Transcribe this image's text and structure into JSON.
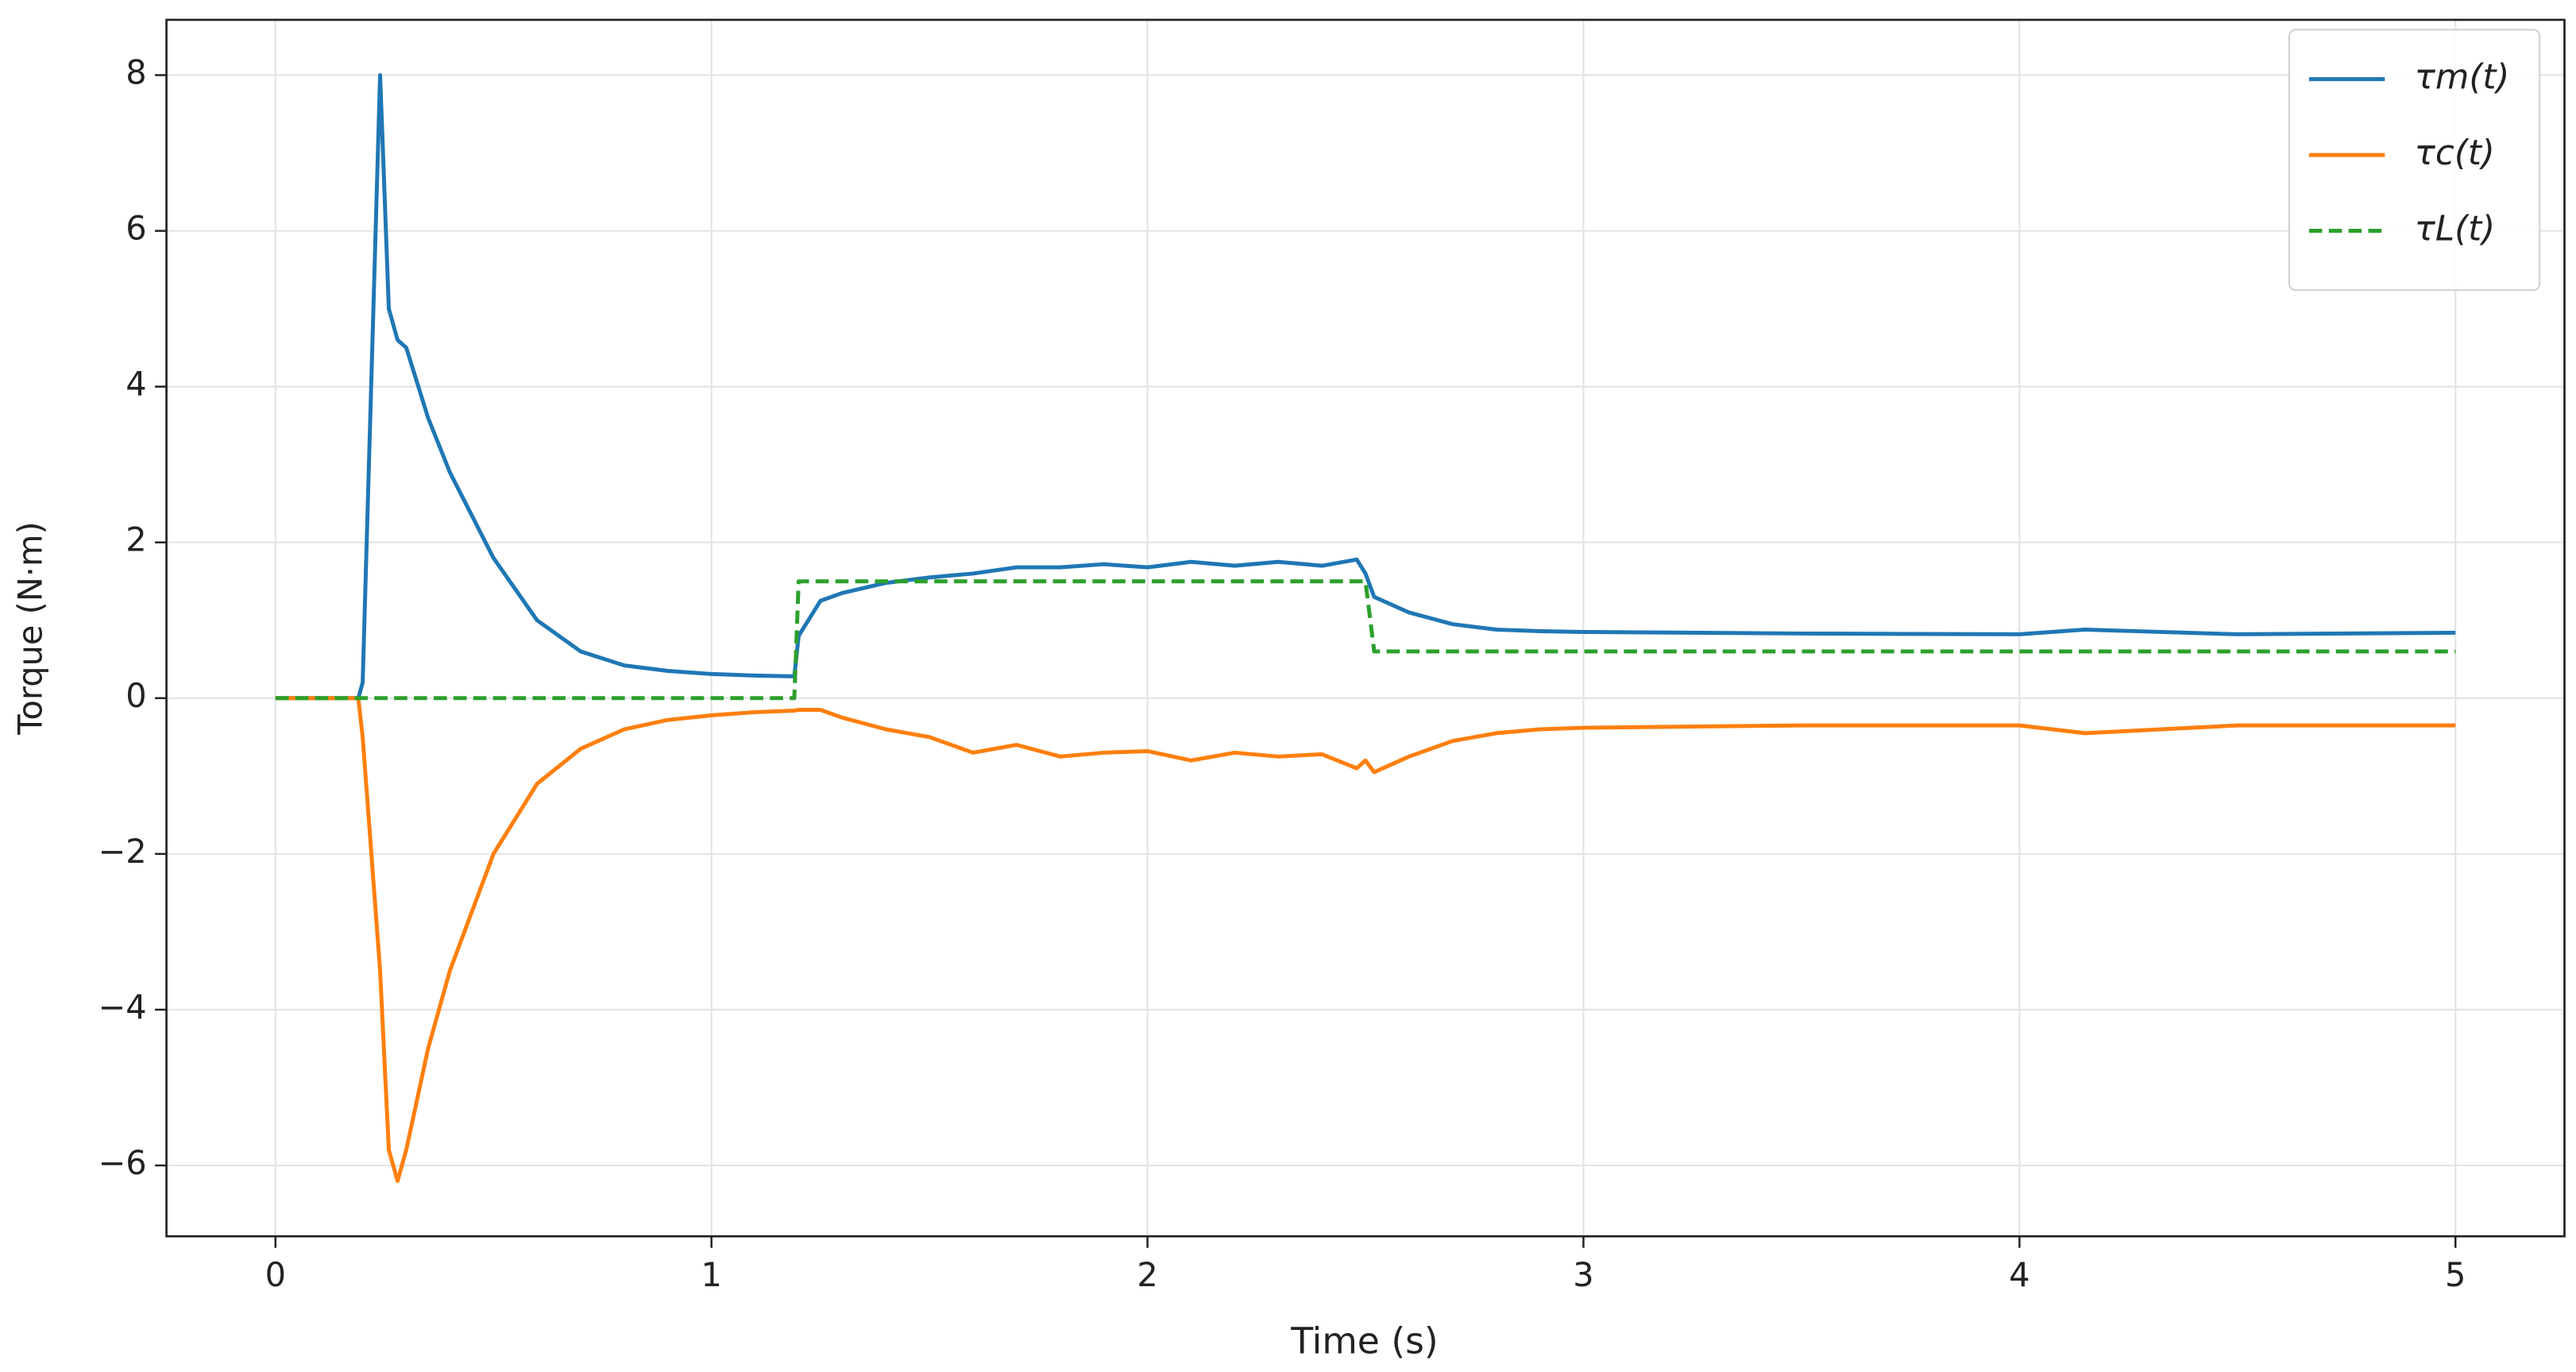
{
  "chart_data": {
    "type": "line",
    "x_label": "Time (s)",
    "y_label": "Torque (N·m)",
    "x": [
      0,
      0.1,
      0.19,
      0.2,
      0.24,
      0.26,
      0.28,
      0.3,
      0.35,
      0.4,
      0.5,
      0.6,
      0.7,
      0.8,
      0.9,
      1.0,
      1.1,
      1.19,
      1.2,
      1.25,
      1.3,
      1.4,
      1.5,
      1.6,
      1.7,
      1.8,
      1.9,
      2.0,
      2.1,
      2.2,
      2.3,
      2.4,
      2.48,
      2.5,
      2.52,
      2.6,
      2.7,
      2.8,
      2.9,
      3.0,
      3.5,
      4.0,
      4.15,
      4.5,
      5.0
    ],
    "series": [
      {
        "name": "τm(t)",
        "color": "#1f77b4",
        "dashed": false,
        "values": [
          0,
          0,
          0,
          0.2,
          8,
          5,
          4.6,
          4.5,
          3.6,
          2.9,
          1.8,
          1.0,
          0.6,
          0.42,
          0.35,
          0.31,
          0.29,
          0.28,
          0.8,
          1.25,
          1.35,
          1.48,
          1.55,
          1.6,
          1.68,
          1.68,
          1.72,
          1.68,
          1.75,
          1.7,
          1.75,
          1.7,
          1.78,
          1.6,
          1.3,
          1.1,
          0.95,
          0.88,
          0.86,
          0.85,
          0.83,
          0.82,
          0.88,
          0.82,
          0.84
        ]
      },
      {
        "name": "τc(t)",
        "color": "#ff7f0e",
        "dashed": false,
        "values": [
          0,
          0,
          0,
          -0.5,
          -3.5,
          -5.8,
          -6.2,
          -5.8,
          -4.5,
          -3.5,
          -2,
          -1.1,
          -0.65,
          -0.4,
          -0.28,
          -0.22,
          -0.18,
          -0.16,
          -0.15,
          -0.15,
          -0.25,
          -0.4,
          -0.5,
          -0.7,
          -0.6,
          -0.75,
          -0.7,
          -0.68,
          -0.8,
          -0.7,
          -0.75,
          -0.72,
          -0.9,
          -0.8,
          -0.95,
          -0.75,
          -0.55,
          -0.45,
          -0.4,
          -0.38,
          -0.35,
          -0.35,
          -0.45,
          -0.35,
          -0.35
        ]
      },
      {
        "name": "τL(t)",
        "color": "#2ca02c",
        "dashed": true,
        "values": [
          0,
          0,
          0,
          0,
          0,
          0,
          0,
          0,
          0,
          0,
          0,
          0,
          0,
          0,
          0,
          0,
          0,
          0,
          1.5,
          1.5,
          1.5,
          1.5,
          1.5,
          1.5,
          1.5,
          1.5,
          1.5,
          1.5,
          1.5,
          1.5,
          1.5,
          1.5,
          1.5,
          1.5,
          0.6,
          0.6,
          0.6,
          0.6,
          0.6,
          0.6,
          0.6,
          0.6,
          0.6,
          0.6,
          0.6
        ]
      }
    ],
    "xlim": [
      -0.25,
      5.25
    ],
    "ylim": [
      -6.91,
      8.71
    ],
    "xticks": [
      0,
      1,
      2,
      3,
      4,
      5
    ],
    "yticks": [
      -6,
      -4,
      -2,
      0,
      2,
      4,
      6,
      8
    ],
    "grid": true,
    "legend": "upper right"
  }
}
